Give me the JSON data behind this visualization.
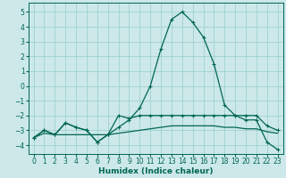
{
  "xlabel": "Humidex (Indice chaleur)",
  "background_color": "#cce8e8",
  "grid_color": "#99cccc",
  "line_color": "#006655",
  "xlim": [
    -0.5,
    23.5
  ],
  "ylim": [
    -4.6,
    5.6
  ],
  "xticks": [
    0,
    1,
    2,
    3,
    4,
    5,
    6,
    7,
    8,
    9,
    10,
    11,
    12,
    13,
    14,
    15,
    16,
    17,
    18,
    19,
    20,
    21,
    22,
    23
  ],
  "yticks": [
    -4,
    -3,
    -2,
    -1,
    0,
    1,
    2,
    3,
    4,
    5
  ],
  "series_flat_x": [
    0,
    1,
    2,
    3,
    4,
    5,
    6,
    7,
    8,
    9,
    10,
    11,
    12,
    13,
    14,
    15,
    16,
    17,
    18,
    19,
    20,
    21,
    22,
    23
  ],
  "series_flat_y": [
    -3.5,
    -3.2,
    -3.3,
    -3.3,
    -3.3,
    -3.3,
    -3.3,
    -3.3,
    -3.2,
    -3.1,
    -3.0,
    -2.9,
    -2.8,
    -2.7,
    -2.7,
    -2.7,
    -2.7,
    -2.7,
    -2.8,
    -2.8,
    -2.9,
    -2.9,
    -3.1,
    -3.2
  ],
  "series_main_x": [
    0,
    1,
    2,
    3,
    4,
    5,
    6,
    7,
    8,
    9,
    10,
    11,
    12,
    13,
    14,
    15,
    16,
    17,
    18,
    19,
    20,
    21,
    22,
    23
  ],
  "series_main_y": [
    -3.5,
    -3.0,
    -3.3,
    -2.5,
    -2.8,
    -3.0,
    -3.8,
    -3.3,
    -2.0,
    -2.2,
    -2.0,
    -2.0,
    -2.0,
    -2.0,
    -2.0,
    -2.0,
    -2.0,
    -2.0,
    -2.0,
    -2.0,
    -2.0,
    -2.0,
    -2.7,
    -3.0
  ],
  "series_peak_x": [
    0,
    1,
    2,
    3,
    4,
    5,
    6,
    7,
    8,
    9,
    10,
    11,
    12,
    13,
    14,
    15,
    16,
    17,
    18,
    19,
    20,
    21,
    22,
    23
  ],
  "series_peak_y": [
    -3.5,
    -3.0,
    -3.3,
    -2.5,
    -2.8,
    -3.0,
    -3.8,
    -3.3,
    -2.8,
    -2.3,
    -1.5,
    0.0,
    2.5,
    4.5,
    5.0,
    4.3,
    3.3,
    1.5,
    -1.3,
    -2.0,
    -2.3,
    -2.3,
    -3.8,
    -4.3
  ],
  "tick_fontsize": 5.5,
  "xlabel_fontsize": 6.5
}
